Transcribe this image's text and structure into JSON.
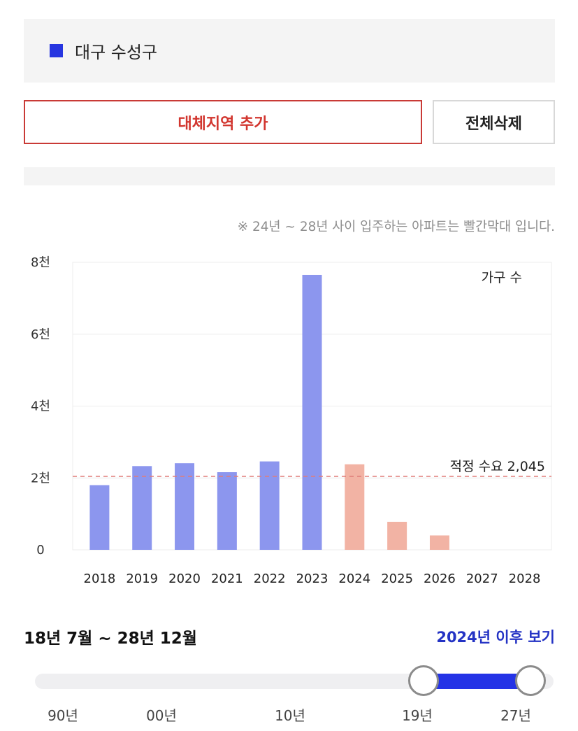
{
  "region": {
    "name": "대구 수성구",
    "swatch_color": "#2635e0"
  },
  "buttons": {
    "add_alt": "대체지역 추가",
    "clear_all": "전체삭제"
  },
  "note": "※ 24년 ~ 28년 사이 입주하는 아파트는 빨간막대 입니다.",
  "chart_data": {
    "type": "bar",
    "categories": [
      "2018",
      "2019",
      "2020",
      "2021",
      "2022",
      "2023",
      "2024",
      "2025",
      "2026",
      "2027",
      "2028"
    ],
    "values": [
      1800,
      2330,
      2410,
      2160,
      2460,
      7650,
      2380,
      780,
      400,
      0,
      0
    ],
    "bar_colors": [
      "#8c96ee",
      "#8c96ee",
      "#8c96ee",
      "#8c96ee",
      "#8c96ee",
      "#8c96ee",
      "#f2b3a4",
      "#f2b3a4",
      "#f2b3a4",
      "#f2b3a4",
      "#f2b3a4"
    ],
    "ylim": [
      0,
      8000
    ],
    "yticks": [
      0,
      2000,
      4000,
      6000,
      8000
    ],
    "ytick_labels": [
      "0",
      "2천",
      "4천",
      "6천",
      "8천"
    ],
    "series_label": "가구 수",
    "reference": {
      "value": 2045,
      "label": "적정 수요 2,045",
      "color": "#e07d78"
    },
    "grid": true
  },
  "range": {
    "text": "18년 7월 ~ 28년 12월",
    "after_link": "2024년 이후 보기",
    "ticks": [
      "90년",
      "00년",
      "10년",
      "19년",
      "27년"
    ]
  }
}
